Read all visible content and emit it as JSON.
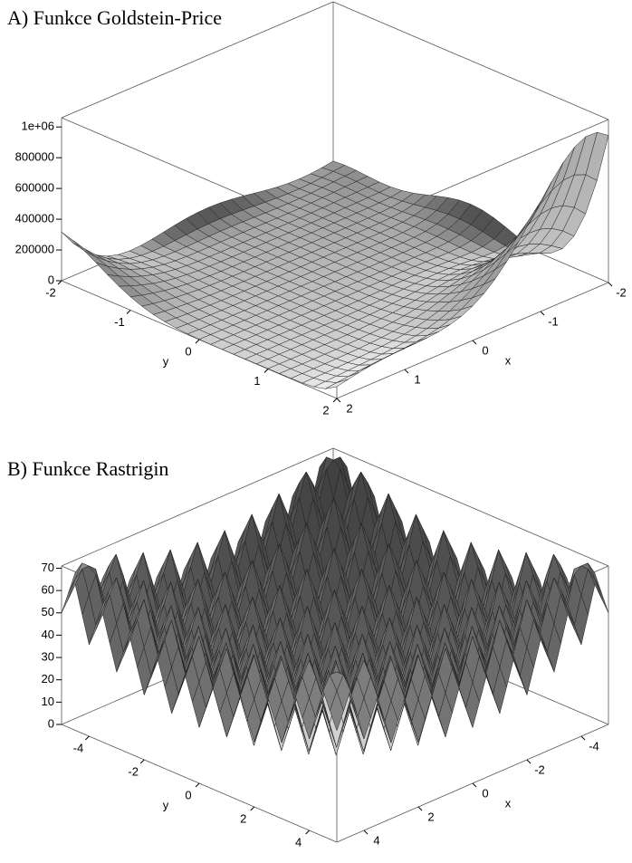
{
  "chart_data": [
    {
      "type": "surface",
      "title": "A) Funkce Goldstein-Price",
      "xlabel": "x",
      "ylabel": "y",
      "xlim": [
        -2,
        2
      ],
      "ylim": [
        -2,
        2
      ],
      "zlim": [
        0,
        1060000
      ],
      "xticks": [
        -2,
        -1,
        0,
        1,
        2
      ],
      "yticks": [
        -2,
        -1,
        0,
        1,
        2
      ],
      "zticks": [
        0,
        200000,
        400000,
        600000,
        800000,
        {
          "value": 1000000,
          "label": "1e+06"
        }
      ]
    },
    {
      "type": "surface",
      "title": "B) Funkce Rastrigin",
      "xlabel": "x",
      "ylabel": "y",
      "xlim": [
        -5,
        5
      ],
      "ylim": [
        -5,
        5
      ],
      "zlim": [
        0,
        71
      ],
      "xticks": [
        -4,
        -2,
        0,
        2,
        4
      ],
      "yticks": [
        -4,
        -2,
        0,
        2,
        4
      ],
      "zticks": [
        0,
        10,
        20,
        30,
        40,
        50,
        60,
        70
      ]
    }
  ]
}
